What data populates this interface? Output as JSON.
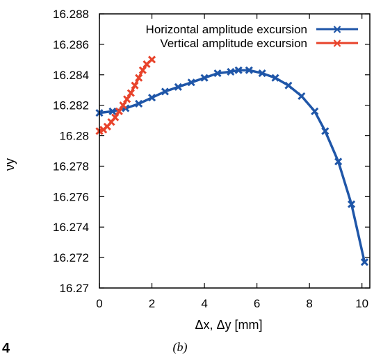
{
  "caption": "(b)",
  "figure_number_fragment": "4",
  "chart_data": {
    "type": "line",
    "xlabel": "Δx, Δy [mm]",
    "ylabel": "νy",
    "xlim": [
      0,
      10.3
    ],
    "ylim": [
      16.27,
      16.288
    ],
    "x_ticks": [
      0,
      2,
      4,
      6,
      8,
      10
    ],
    "y_ticks": [
      16.27,
      16.272,
      16.274,
      16.276,
      16.278,
      16.28,
      16.282,
      16.284,
      16.286,
      16.288
    ],
    "x_tick_labels": [
      "0",
      "2",
      "4",
      "6",
      "8",
      "10"
    ],
    "y_tick_labels": [
      "16.27",
      "16.272",
      "16.274",
      "16.276",
      "16.278",
      "16.28",
      "16.282",
      "16.284",
      "16.286",
      "16.288"
    ],
    "grid": false,
    "legend_position": "top-right",
    "series": [
      {
        "name": "Horizontal amplitude excursion",
        "color": "#1f56a8",
        "marker": "x",
        "x": [
          0.0,
          0.5,
          1.0,
          1.5,
          2.0,
          2.5,
          3.0,
          3.5,
          4.0,
          4.5,
          5.0,
          5.3,
          5.7,
          6.2,
          6.7,
          7.2,
          7.7,
          8.2,
          8.6,
          9.1,
          9.6,
          10.1
        ],
        "y": [
          16.2815,
          16.2816,
          16.2818,
          16.2821,
          16.2825,
          16.2829,
          16.2832,
          16.2835,
          16.2838,
          16.2841,
          16.2842,
          16.2843,
          16.2843,
          16.2841,
          16.2838,
          16.2833,
          16.2826,
          16.2816,
          16.2803,
          16.2783,
          16.2755,
          16.2717
        ]
      },
      {
        "name": "Vertical amplitude excursion",
        "color": "#e8432b",
        "marker": "x",
        "x": [
          0.0,
          0.15,
          0.3,
          0.45,
          0.6,
          0.75,
          0.9,
          1.05,
          1.2,
          1.35,
          1.5,
          1.65,
          1.8,
          2.0
        ],
        "y": [
          16.2803,
          16.2804,
          16.2806,
          16.2809,
          16.2812,
          16.2816,
          16.282,
          16.2824,
          16.2828,
          16.2833,
          16.2838,
          16.2843,
          16.2847,
          16.285
        ]
      }
    ]
  }
}
